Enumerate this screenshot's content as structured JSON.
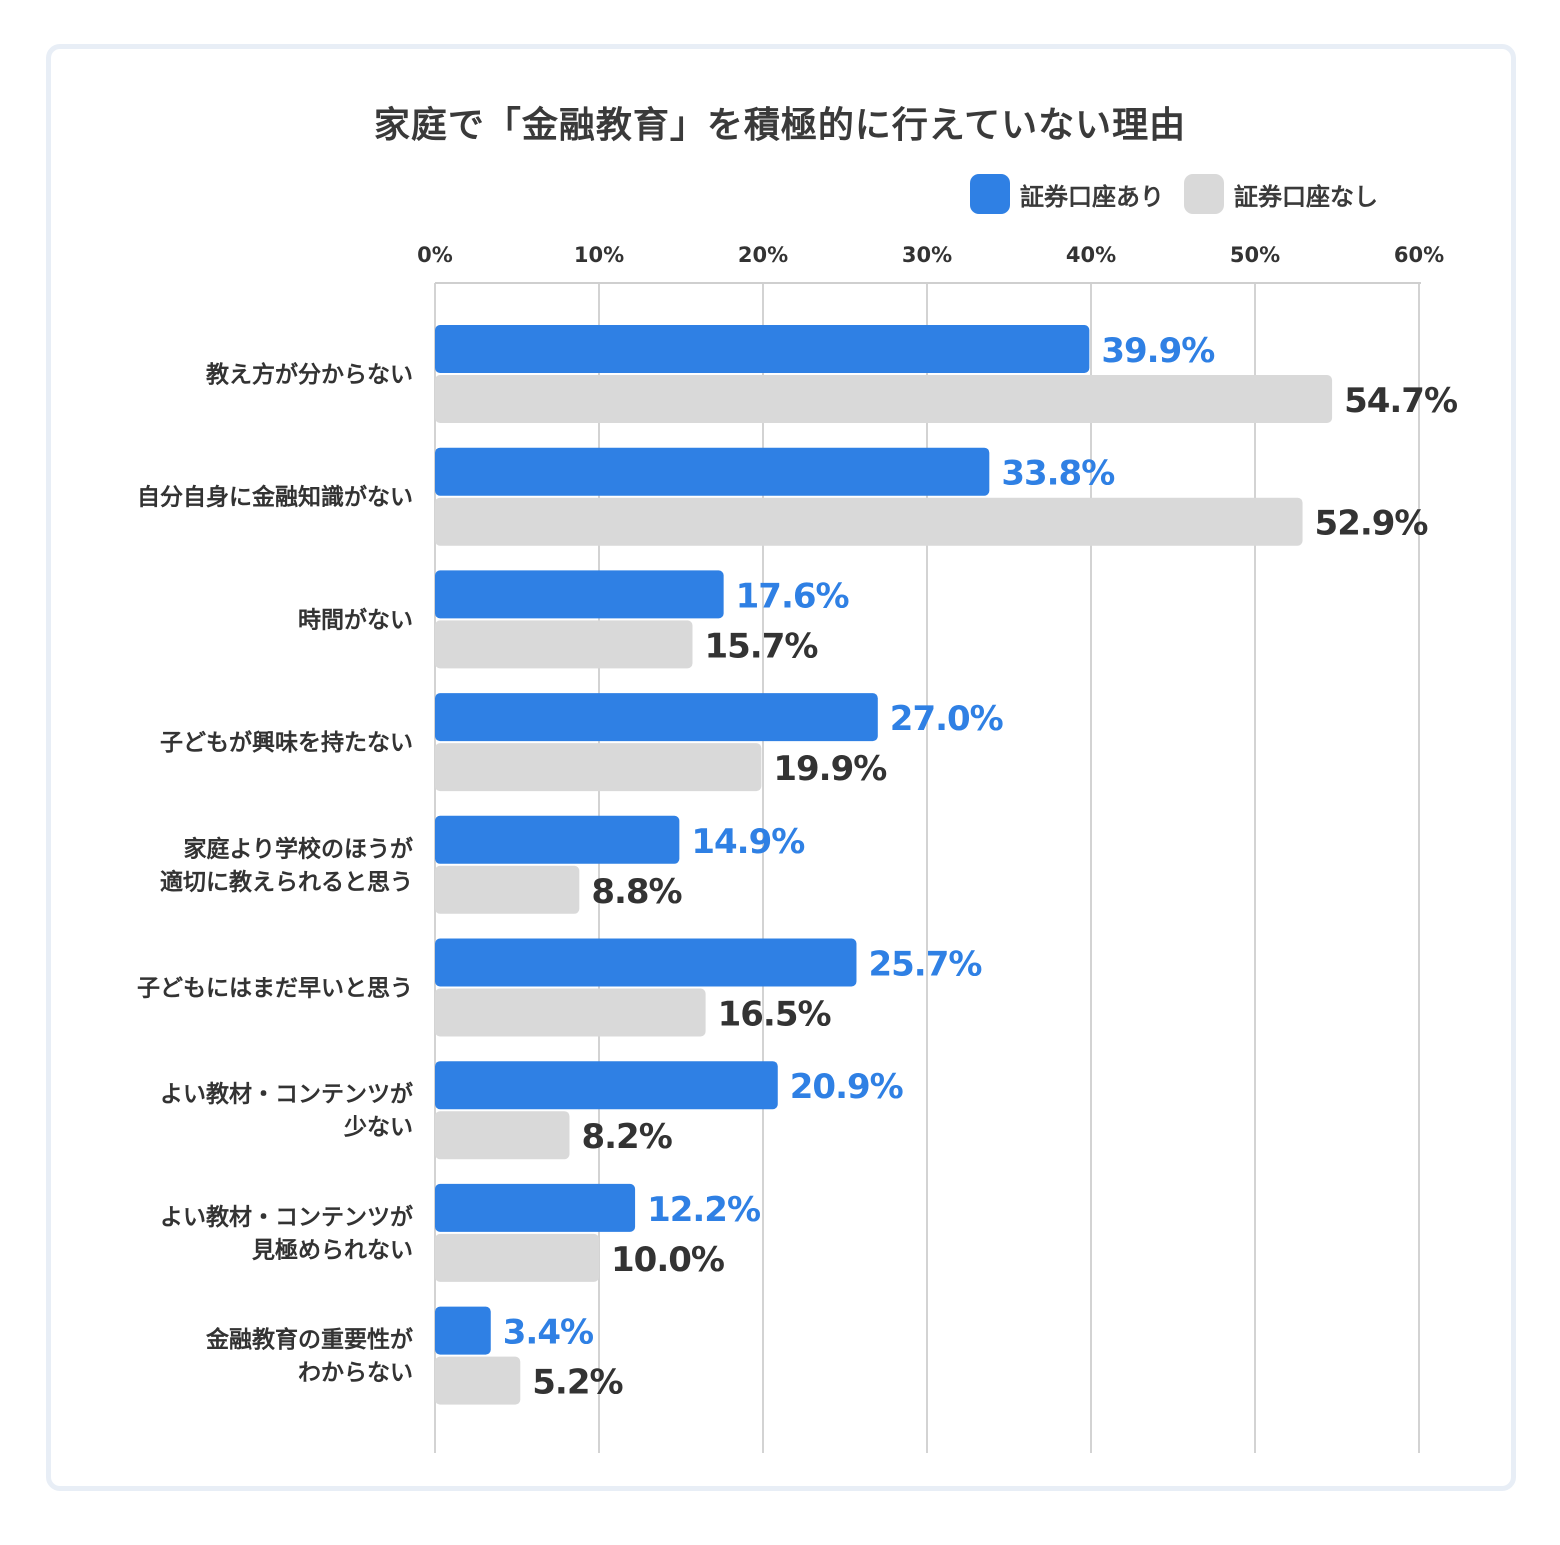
{
  "chart_data": {
    "type": "bar",
    "orientation": "horizontal",
    "title": "家庭で「金融教育」を積極的に行えていない理由",
    "xlim": [
      0,
      60
    ],
    "x_ticks": [
      "0%",
      "10%",
      "20%",
      "30%",
      "40%",
      "50%",
      "60%"
    ],
    "grid": true,
    "legend_position": "top-right",
    "categories": [
      [
        "教え方が分からない"
      ],
      [
        "自分自身に金融知識がない"
      ],
      [
        "時間がない"
      ],
      [
        "子どもが興味を持たない"
      ],
      [
        "家庭より学校のほうが",
        "適切に教えられると思う"
      ],
      [
        "子どもにはまだ早いと思う"
      ],
      [
        "よい教材・コンテンツが",
        "少ない"
      ],
      [
        "よい教材・コンテンツが",
        "見極められない"
      ],
      [
        "金融教育の重要性が",
        "わからない"
      ]
    ],
    "series": [
      {
        "name": "証券口座あり",
        "color": "#2f80e4",
        "label_color": "#2f80e4",
        "values": [
          39.9,
          33.8,
          17.6,
          27.0,
          14.9,
          25.7,
          20.9,
          12.2,
          3.4
        ],
        "labels": [
          "39.9%",
          "33.8%",
          "17.6%",
          "27.0%",
          "14.9%",
          "25.7%",
          "20.9%",
          "12.2%",
          "3.4%"
        ]
      },
      {
        "name": "証券口座なし",
        "color": "#d9d9d9",
        "label_color": "#333333",
        "values": [
          54.7,
          52.9,
          15.7,
          19.9,
          8.8,
          16.5,
          8.2,
          10.0,
          5.2
        ],
        "labels": [
          "54.7%",
          "52.9%",
          "15.7%",
          "19.9%",
          "8.8%",
          "16.5%",
          "8.2%",
          "10.0%",
          "5.2%"
        ]
      }
    ]
  }
}
